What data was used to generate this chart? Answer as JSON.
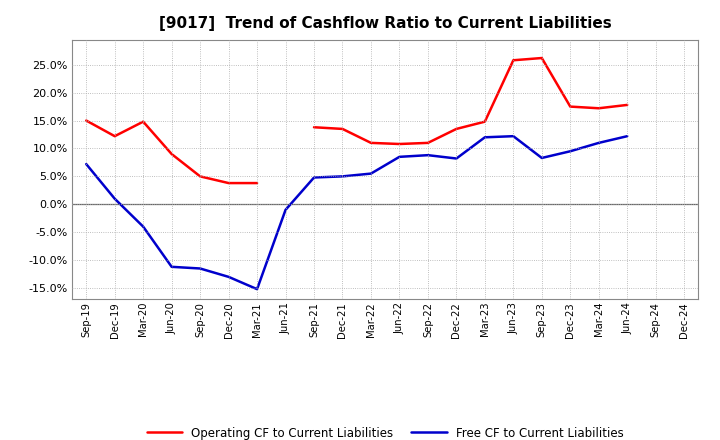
{
  "title": "[9017]  Trend of Cashflow Ratio to Current Liabilities",
  "x_labels": [
    "Sep-19",
    "Dec-19",
    "Mar-20",
    "Jun-20",
    "Sep-20",
    "Dec-20",
    "Mar-21",
    "Jun-21",
    "Sep-21",
    "Dec-21",
    "Mar-22",
    "Jun-22",
    "Sep-22",
    "Dec-22",
    "Mar-23",
    "Jun-23",
    "Sep-23",
    "Dec-23",
    "Mar-24",
    "Jun-24",
    "Sep-24",
    "Dec-24"
  ],
  "operating_cf": [
    0.15,
    0.122,
    0.148,
    0.09,
    0.05,
    0.038,
    0.038,
    null,
    0.138,
    0.135,
    0.11,
    0.108,
    0.11,
    0.135,
    0.148,
    0.258,
    0.262,
    0.175,
    0.172,
    0.178,
    null,
    null
  ],
  "free_cf": [
    0.072,
    0.01,
    -0.04,
    -0.112,
    -0.115,
    -0.13,
    -0.152,
    -0.01,
    0.048,
    0.05,
    0.055,
    0.085,
    0.088,
    0.082,
    0.12,
    0.122,
    0.083,
    0.095,
    0.11,
    0.122,
    null,
    null
  ],
  "operating_color": "#FF0000",
  "free_color": "#0000CC",
  "ylim": [
    -0.17,
    0.295
  ],
  "yticks": [
    -0.15,
    -0.1,
    -0.05,
    0.0,
    0.05,
    0.1,
    0.15,
    0.2,
    0.25
  ],
  "legend_op": "Operating CF to Current Liabilities",
  "legend_free": "Free CF to Current Liabilities",
  "bg_color": "#FFFFFF",
  "grid_color": "#AAAAAA",
  "title_fontsize": 11,
  "line_width": 1.8
}
